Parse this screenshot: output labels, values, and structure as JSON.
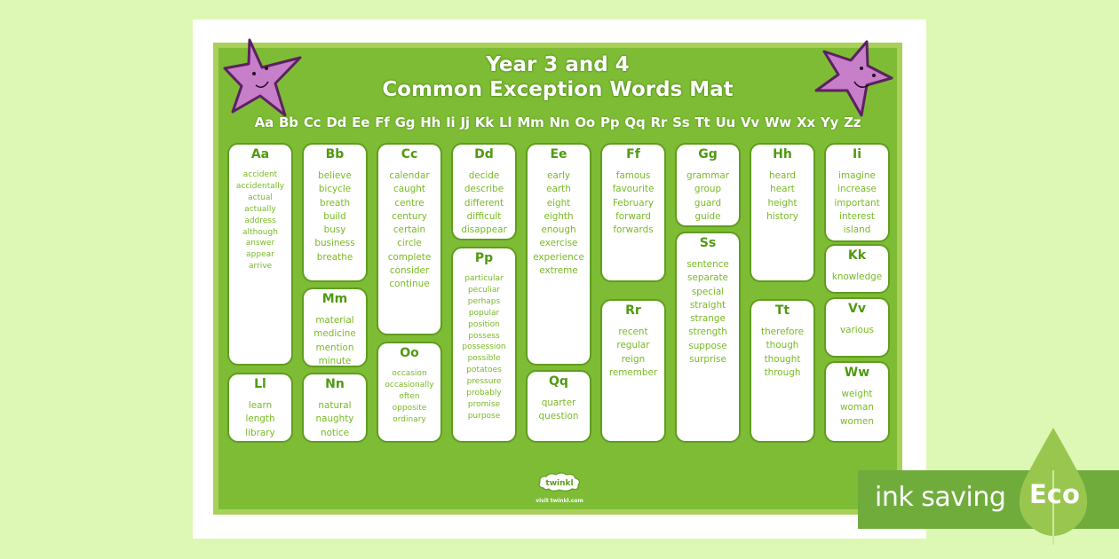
{
  "document": {
    "title_line1": "Year 3 and 4",
    "title_line2": "Common Exception Words Mat",
    "alphabet": "Aa Bb Cc Dd Ee Ff Gg Hh Ii Jj Kk Ll Mm Nn Oo Pp Qq Rr Ss Tt Uu Vv Ww Xx Yy Zz",
    "footer_logo": "twinkl",
    "footer_url": "visit twinkl.com"
  },
  "cards": {
    "a": {
      "heading": "Aa",
      "words": [
        "accident",
        "accidentally",
        "actual",
        "actually",
        "address",
        "although",
        "answer",
        "appear",
        "arrive"
      ]
    },
    "b": {
      "heading": "Bb",
      "words": [
        "believe",
        "bicycle",
        "breath",
        "build",
        "busy",
        "business",
        "breathe"
      ]
    },
    "c": {
      "heading": "Cc",
      "words": [
        "calendar",
        "caught",
        "centre",
        "century",
        "certain",
        "circle",
        "complete",
        "consider",
        "continue"
      ]
    },
    "d": {
      "heading": "Dd",
      "words": [
        "decide",
        "describe",
        "different",
        "difficult",
        "disappear"
      ]
    },
    "e": {
      "heading": "Ee",
      "words": [
        "early",
        "earth",
        "eight",
        "eighth",
        "enough",
        "exercise",
        "experience",
        "extreme"
      ]
    },
    "f": {
      "heading": "Ff",
      "words": [
        "famous",
        "favourite",
        "February",
        "forward",
        "forwards"
      ]
    },
    "g": {
      "heading": "Gg",
      "words": [
        "grammar",
        "group",
        "guard",
        "guide"
      ]
    },
    "h": {
      "heading": "Hh",
      "words": [
        "heard",
        "heart",
        "height",
        "history"
      ]
    },
    "i": {
      "heading": "Ii",
      "words": [
        "imagine",
        "increase",
        "important",
        "interest",
        "island"
      ]
    },
    "k": {
      "heading": "Kk",
      "words": [
        "knowledge"
      ]
    },
    "l": {
      "heading": "Ll",
      "words": [
        "learn",
        "length",
        "library"
      ]
    },
    "m": {
      "heading": "Mm",
      "words": [
        "material",
        "medicine",
        "mention",
        "minute"
      ]
    },
    "n": {
      "heading": "Nn",
      "words": [
        "natural",
        "naughty",
        "notice"
      ]
    },
    "o": {
      "heading": "Oo",
      "words": [
        "occasion",
        "occasionally",
        "often",
        "opposite",
        "ordinary"
      ]
    },
    "p": {
      "heading": "Pp",
      "words": [
        "particular",
        "peculiar",
        "perhaps",
        "popular",
        "position",
        "possess",
        "possession",
        "possible",
        "potatoes",
        "pressure",
        "probably",
        "promise",
        "purpose"
      ]
    },
    "q": {
      "heading": "Qq",
      "words": [
        "quarter",
        "question"
      ]
    },
    "r": {
      "heading": "Rr",
      "words": [
        "recent",
        "regular",
        "reign",
        "remember"
      ]
    },
    "s": {
      "heading": "Ss",
      "words": [
        "sentence",
        "separate",
        "special",
        "straight",
        "strange",
        "strength",
        "suppose",
        "surprise"
      ]
    },
    "t": {
      "heading": "Tt",
      "words": [
        "therefore",
        "though",
        "thought",
        "through"
      ]
    },
    "v": {
      "heading": "Vv",
      "words": [
        "various"
      ]
    },
    "w": {
      "heading": "Ww",
      "words": [
        "weight",
        "woman",
        "women"
      ]
    }
  },
  "eco_badge": {
    "label": "ink saving",
    "tag": "Eco"
  },
  "colors": {
    "page_bg": "#ddf7b4",
    "mat_green": "#7ebc35",
    "mat_border": "#a9d05a",
    "word_green": "#79b925",
    "star_purple": "#c77fc9",
    "eco_green": "#6fac3c"
  }
}
